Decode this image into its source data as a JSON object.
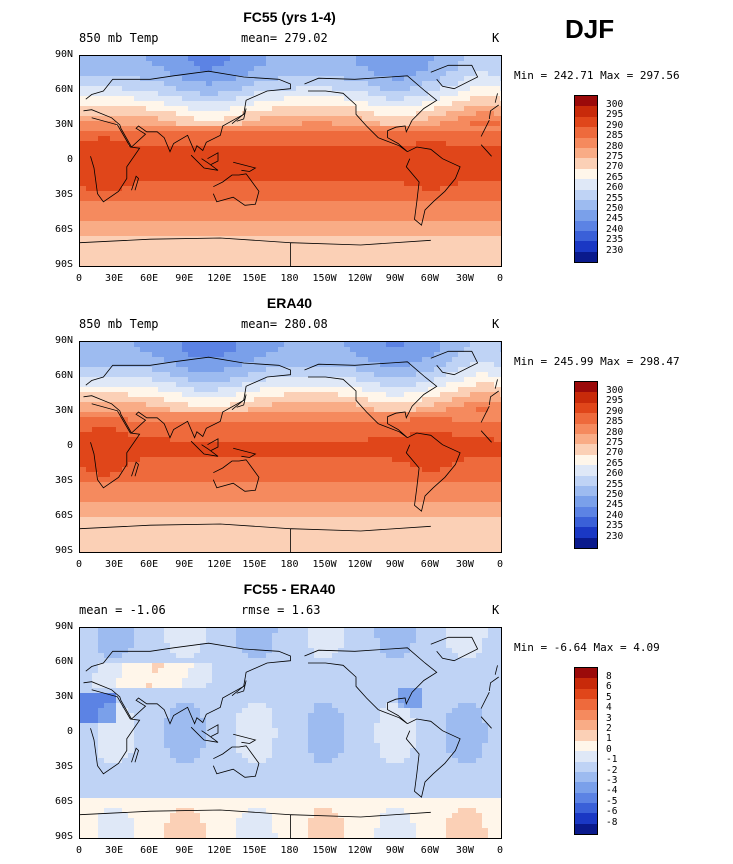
{
  "season": "DJF",
  "panels": [
    {
      "title": "FC55 (yrs 1-4)",
      "left_label": "850 mb Temp",
      "center_label": "mean= 279.02",
      "unit": "K",
      "min_max": "Min = 242.71 Max = 297.56",
      "colorbar_labels": [
        "300",
        "295",
        "290",
        "285",
        "280",
        "275",
        "270",
        "265",
        "260",
        "255",
        "250",
        "245",
        "240",
        "235",
        "230"
      ],
      "colorbar_colors": [
        "#9b0a0a",
        "#c82a0a",
        "#e0461a",
        "#ee6a3c",
        "#f58a5e",
        "#f9ac86",
        "#fbd0b6",
        "#fff6ea",
        "#dfe8f7",
        "#bfd3f5",
        "#9dbbf0",
        "#7aa0ea",
        "#5c83e4",
        "#3a60d8",
        "#1a38c4",
        "#0a1a8c"
      ],
      "mode": "temp"
    },
    {
      "title": "ERA40",
      "left_label": "850 mb Temp",
      "center_label": "mean= 280.08",
      "unit": "K",
      "min_max": "Min = 245.99 Max = 298.47",
      "colorbar_labels": [
        "300",
        "295",
        "290",
        "285",
        "280",
        "275",
        "270",
        "265",
        "260",
        "255",
        "250",
        "245",
        "240",
        "235",
        "230"
      ],
      "colorbar_colors": [
        "#9b0a0a",
        "#c82a0a",
        "#e0461a",
        "#ee6a3c",
        "#f58a5e",
        "#f9ac86",
        "#fbd0b6",
        "#fff6ea",
        "#dfe8f7",
        "#bfd3f5",
        "#9dbbf0",
        "#7aa0ea",
        "#5c83e4",
        "#3a60d8",
        "#1a38c4",
        "#0a1a8c"
      ],
      "mode": "temp"
    },
    {
      "title": "FC55 - ERA40",
      "left_label": "mean =  -1.06",
      "center_label": "rmse =   1.63",
      "unit": "K",
      "min_max": "Min =  -6.64 Max =   4.09",
      "colorbar_labels": [
        "8",
        "6",
        "5",
        "4",
        "3",
        "2",
        "1",
        "0",
        "-1",
        "-2",
        "-3",
        "-4",
        "-5",
        "-6",
        "-8"
      ],
      "colorbar_colors": [
        "#9b0a0a",
        "#c82a0a",
        "#e0461a",
        "#ee6a3c",
        "#f58a5e",
        "#f9ac86",
        "#fbd0b6",
        "#fff6ea",
        "#dfe8f7",
        "#bfd3f5",
        "#9dbbf0",
        "#7aa0ea",
        "#5c83e4",
        "#3a60d8",
        "#1a38c4",
        "#0a1a8c"
      ],
      "mode": "diff"
    }
  ],
  "lat_labels": [
    "90N",
    "60N",
    "30N",
    "0",
    "30S",
    "60S",
    "90S"
  ],
  "lon_labels": [
    "0",
    "30E",
    "60E",
    "90E",
    "120E",
    "150E",
    "180",
    "150W",
    "120W",
    "90W",
    "60W",
    "30W",
    "0"
  ]
}
